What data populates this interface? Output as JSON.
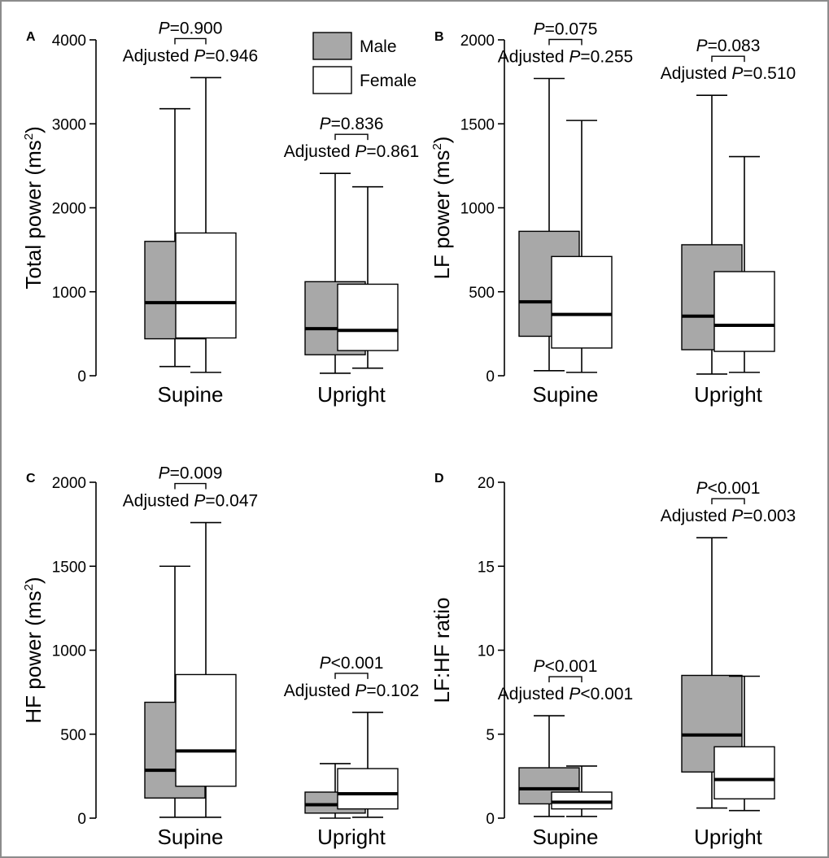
{
  "legend": [
    {
      "label": "Male",
      "color": "#a8a8a8"
    },
    {
      "label": "Female",
      "color": "#ffffff"
    }
  ],
  "chart_data": [
    {
      "type": "box",
      "panel_label": "A",
      "ylabel": "Total power (ms²)",
      "ylabel_main": "Total power (ms",
      "ylabel_sup": "2",
      "ylabel_tail": ")",
      "ylim": [
        0,
        4000
      ],
      "yticks": [
        "0",
        "1000",
        "2000",
        "3000",
        "4000"
      ],
      "categories": [
        "Supine",
        "Upright"
      ],
      "series": [
        {
          "name": "Male",
          "boxes": [
            {
              "min": 110,
              "q1": 440,
              "median": 870,
              "q3": 1600,
              "max": 3180
            },
            {
              "min": 30,
              "q1": 250,
              "median": 560,
              "q3": 1120,
              "max": 2410
            }
          ]
        },
        {
          "name": "Female",
          "boxes": [
            {
              "min": 40,
              "q1": 450,
              "median": 870,
              "q3": 1700,
              "max": 3550
            },
            {
              "min": 90,
              "q1": 300,
              "median": 540,
              "q3": 1090,
              "max": 2250
            }
          ]
        }
      ],
      "annotations": [
        {
          "p": "0.900",
          "p_op": "=",
          "adj": "0.946",
          "adj_op": "="
        },
        {
          "p": "0.836",
          "p_op": "=",
          "adj": "0.861",
          "adj_op": "="
        }
      ]
    },
    {
      "type": "box",
      "panel_label": "B",
      "ylabel": "LF power (ms²)",
      "ylabel_main": "LF power (ms",
      "ylabel_sup": "2",
      "ylabel_tail": ")",
      "ylim": [
        0,
        2000
      ],
      "yticks": [
        "0",
        "500",
        "1000",
        "1500",
        "2000"
      ],
      "categories": [
        "Supine",
        "Upright"
      ],
      "series": [
        {
          "name": "Male",
          "boxes": [
            {
              "min": 30,
              "q1": 235,
              "median": 440,
              "q3": 860,
              "max": 1770
            },
            {
              "min": 10,
              "q1": 155,
              "median": 355,
              "q3": 780,
              "max": 1670
            }
          ]
        },
        {
          "name": "Female",
          "boxes": [
            {
              "min": 20,
              "q1": 165,
              "median": 365,
              "q3": 710,
              "max": 1520
            },
            {
              "min": 20,
              "q1": 145,
              "median": 300,
              "q3": 620,
              "max": 1305
            }
          ]
        }
      ],
      "annotations": [
        {
          "p": "0.075",
          "p_op": "=",
          "adj": "0.255",
          "adj_op": "="
        },
        {
          "p": "0.083",
          "p_op": "=",
          "adj": "0.510",
          "adj_op": "="
        }
      ]
    },
    {
      "type": "box",
      "panel_label": "C",
      "ylabel": "HF power (ms²)",
      "ylabel_main": "HF power (ms",
      "ylabel_sup": "2",
      "ylabel_tail": ")",
      "ylim": [
        0,
        2000
      ],
      "yticks": [
        "0",
        "500",
        "1000",
        "1500",
        "2000"
      ],
      "categories": [
        "Supine",
        "Upright"
      ],
      "series": [
        {
          "name": "Male",
          "boxes": [
            {
              "min": 5,
              "q1": 120,
              "median": 285,
              "q3": 690,
              "max": 1500
            },
            {
              "min": 0,
              "q1": 30,
              "median": 80,
              "q3": 155,
              "max": 325
            }
          ]
        },
        {
          "name": "Female",
          "boxes": [
            {
              "min": 5,
              "q1": 190,
              "median": 400,
              "q3": 855,
              "max": 1760
            },
            {
              "min": 5,
              "q1": 55,
              "median": 145,
              "q3": 295,
              "max": 630
            }
          ]
        }
      ],
      "annotations": [
        {
          "p": "0.009",
          "p_op": "=",
          "adj": "0.047",
          "adj_op": "="
        },
        {
          "p": "0.001",
          "p_op": "<",
          "adj": "0.102",
          "adj_op": "="
        }
      ]
    },
    {
      "type": "box",
      "panel_label": "D",
      "ylabel": "LF:HF ratio",
      "ylabel_main": "LF:HF ratio",
      "ylabel_sup": "",
      "ylabel_tail": "",
      "ylim": [
        0,
        20
      ],
      "yticks": [
        "0",
        "5",
        "10",
        "15",
        "20"
      ],
      "categories": [
        "Supine",
        "Upright"
      ],
      "series": [
        {
          "name": "Male",
          "boxes": [
            {
              "min": 0.1,
              "q1": 0.85,
              "median": 1.75,
              "q3": 3.0,
              "max": 6.1
            },
            {
              "min": 0.6,
              "q1": 2.75,
              "median": 4.95,
              "q3": 8.5,
              "max": 16.7
            }
          ]
        },
        {
          "name": "Female",
          "boxes": [
            {
              "min": 0.1,
              "q1": 0.55,
              "median": 0.95,
              "q3": 1.55,
              "max": 3.1
            },
            {
              "min": 0.45,
              "q1": 1.15,
              "median": 2.3,
              "q3": 4.25,
              "max": 8.45
            }
          ]
        }
      ],
      "annotations": [
        {
          "p": "0.001",
          "p_op": "<",
          "adj": "0.001",
          "adj_op": "<"
        },
        {
          "p": "0.001",
          "p_op": "<",
          "adj": "0.003",
          "adj_op": "="
        }
      ]
    }
  ]
}
